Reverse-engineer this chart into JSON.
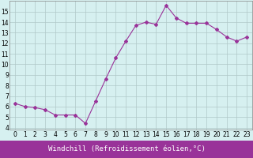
{
  "x": [
    0,
    1,
    2,
    3,
    4,
    5,
    6,
    7,
    8,
    9,
    10,
    11,
    12,
    13,
    14,
    15,
    16,
    17,
    18,
    19,
    20,
    21,
    22,
    23
  ],
  "y": [
    6.3,
    6.0,
    5.9,
    5.7,
    5.2,
    5.2,
    5.2,
    4.4,
    6.5,
    8.6,
    10.6,
    12.2,
    13.7,
    14.0,
    13.8,
    15.6,
    14.4,
    13.9,
    13.9,
    13.9,
    13.3,
    12.6,
    12.2,
    12.6
  ],
  "line_color": "#993399",
  "marker": "D",
  "markersize": 2.0,
  "linewidth": 0.8,
  "xlabel": "Windchill (Refroidissement éolien,°C)",
  "xlabel_fontsize": 6.5,
  "xlabel_color": "#ffffff",
  "xlabel_bg": "#993399",
  "ylim": [
    3.8,
    16.0
  ],
  "yticks": [
    4,
    5,
    6,
    7,
    8,
    9,
    10,
    11,
    12,
    13,
    14,
    15
  ],
  "xticks": [
    0,
    1,
    2,
    3,
    4,
    5,
    6,
    7,
    8,
    9,
    10,
    11,
    12,
    13,
    14,
    15,
    16,
    17,
    18,
    19,
    20,
    21,
    22,
    23
  ],
  "bg_color": "#d6f0f0",
  "grid_color": "#b0c8c8",
  "tick_fontsize": 5.5,
  "tick_color": "#000000"
}
